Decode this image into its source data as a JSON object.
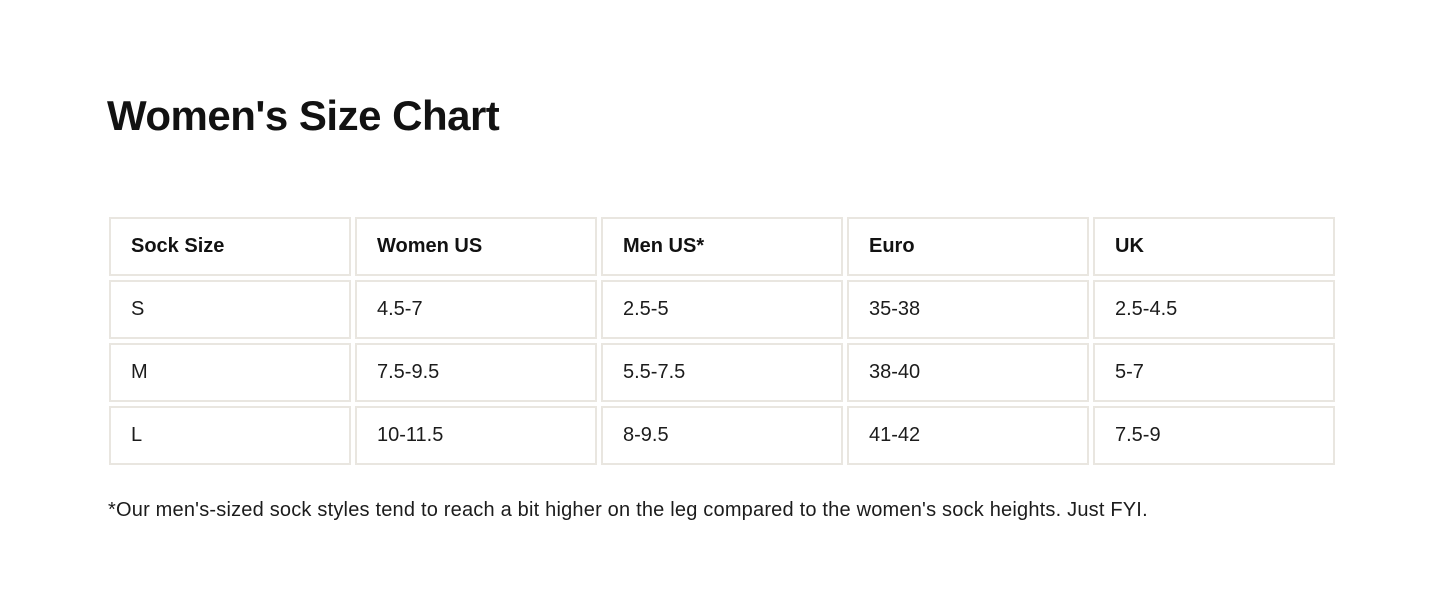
{
  "page": {
    "title": "Women's Size Chart",
    "footnote": "*Our men's-sized sock styles tend to reach a bit higher on the leg compared to the women's sock heights. Just FYI."
  },
  "size_chart": {
    "columns": [
      "Sock Size",
      "Women US",
      "Men US*",
      "Euro",
      "UK"
    ],
    "rows": [
      [
        "S",
        "4.5-7",
        "2.5-5",
        "35-38",
        "2.5-4.5"
      ],
      [
        "M",
        "7.5-9.5",
        "5.5-7.5",
        "38-40",
        "5-7"
      ],
      [
        "L",
        "10-11.5",
        "8-9.5",
        "41-42",
        "7.5-9"
      ]
    ]
  },
  "colors": {
    "text": "#1c1c1c",
    "heading": "#121212",
    "table_border": "#e9e6e0",
    "background": "#ffffff"
  }
}
